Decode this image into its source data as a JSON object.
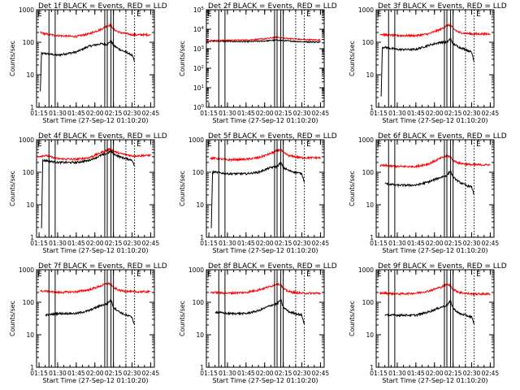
{
  "figure": {
    "xlabel": "Start Time (27-Sep-12 01:10:20)",
    "ylabel": "Counts/sec",
    "xticks": [
      "01:15",
      "01:30",
      "01:45",
      "02:00",
      "02:15",
      "02:30",
      "02:45"
    ],
    "legend_note": "BLACK = Events, RED = LLD",
    "marker_label": "E",
    "colors": {
      "events": "#000000",
      "lld": "#ff0000",
      "background": "#ffffff"
    }
  },
  "chart_data": [
    {
      "type": "line",
      "title": "Det 1f BLACK = Events, RED = LLD",
      "xlabel": "Start Time (27-Sep-12 01:10:20)",
      "ylabel": "Counts/sec",
      "yscale": "log",
      "ylim": [
        1,
        1000
      ],
      "yticks": [
        "1",
        "10",
        "100",
        "1000"
      ],
      "xlim": [
        "01:13",
        "02:48"
      ],
      "xticks": [
        "01:15",
        "01:30",
        "01:45",
        "02:00",
        "02:15",
        "02:30",
        "02:45"
      ],
      "series": [
        {
          "name": "Events",
          "color": "#000000",
          "x": [
            "01:16",
            "01:17",
            "01:20",
            "01:30",
            "01:45",
            "01:55",
            "02:05",
            "02:10",
            "02:13",
            "02:15",
            "02:20",
            "02:25",
            "02:30",
            "02:32"
          ],
          "y": [
            3,
            45,
            45,
            40,
            50,
            75,
            90,
            85,
            110,
            80,
            60,
            50,
            40,
            25
          ]
        },
        {
          "name": "LLD",
          "color": "#ff0000",
          "x": [
            "01:16",
            "01:20",
            "01:30",
            "01:45",
            "01:55",
            "02:05",
            "02:10",
            "02:13",
            "02:15",
            "02:20",
            "02:30",
            "02:45"
          ],
          "y": [
            200,
            180,
            160,
            150,
            180,
            250,
            320,
            340,
            250,
            200,
            170,
            170
          ]
        }
      ],
      "vlines_solid": [
        "01:23",
        "01:28",
        "02:08",
        "02:10",
        "02:13",
        "02:15"
      ],
      "vlines_dotted": [
        "02:25",
        "02:32"
      ],
      "markers": [
        "01:13",
        "02:33"
      ]
    },
    {
      "type": "line",
      "title": "Det 2f BLACK = Events, RED = LLD",
      "xlabel": "Start Time (27-Sep-12 01:10:20)",
      "ylabel": "Counts/sec",
      "yscale": "log",
      "ylim": [
        1,
        100000
      ],
      "yticks": [
        "10^0",
        "10^1",
        "10^2",
        "10^3",
        "10^4",
        "10^5"
      ],
      "xlim": [
        "01:13",
        "02:48"
      ],
      "xticks": [
        "01:15",
        "01:30",
        "01:45",
        "02:00",
        "02:15",
        "02:30",
        "02:45"
      ],
      "series": [
        {
          "name": "Events",
          "color": "#000000",
          "x": [
            "01:13",
            "01:30",
            "01:45",
            "02:00",
            "02:10",
            "02:15",
            "02:30",
            "02:45"
          ],
          "y": [
            2500,
            2400,
            2300,
            2500,
            2800,
            2600,
            2300,
            2200
          ]
        },
        {
          "name": "LLD",
          "color": "#ff0000",
          "x": [
            "01:13",
            "01:30",
            "01:45",
            "02:00",
            "02:10",
            "02:15",
            "02:30",
            "02:45"
          ],
          "y": [
            2600,
            2700,
            2800,
            3200,
            4000,
            3500,
            3000,
            2800
          ]
        }
      ],
      "vlines_solid": [
        "01:23",
        "01:28",
        "02:08",
        "02:10",
        "02:13",
        "02:15"
      ],
      "vlines_dotted": [
        "02:25",
        "02:32"
      ],
      "markers": [
        "01:13",
        "02:33"
      ]
    },
    {
      "type": "line",
      "title": "Det 3f BLACK = Events, RED = LLD",
      "xlabel": "Start Time (27-Sep-12 01:10:20)",
      "ylabel": "Counts/sec",
      "yscale": "log",
      "ylim": [
        1,
        1000
      ],
      "yticks": [
        "1",
        "10",
        "100",
        "1000"
      ],
      "xlim": [
        "01:13",
        "02:48"
      ],
      "xticks": [
        "01:15",
        "01:30",
        "01:45",
        "02:00",
        "02:15",
        "02:30",
        "02:45"
      ],
      "series": [
        {
          "name": "Events",
          "color": "#000000",
          "x": [
            "01:17",
            "01:18",
            "01:20",
            "01:30",
            "01:45",
            "01:55",
            "02:05",
            "02:10",
            "02:13",
            "02:15",
            "02:20",
            "02:25",
            "02:30",
            "02:32"
          ],
          "y": [
            2,
            70,
            70,
            60,
            60,
            80,
            100,
            100,
            130,
            90,
            70,
            60,
            50,
            25
          ]
        },
        {
          "name": "LLD",
          "color": "#ff0000",
          "x": [
            "01:16",
            "01:20",
            "01:30",
            "01:45",
            "01:55",
            "02:05",
            "02:10",
            "02:13",
            "02:15",
            "02:20",
            "02:30",
            "02:45"
          ],
          "y": [
            180,
            170,
            160,
            160,
            180,
            250,
            330,
            340,
            260,
            200,
            180,
            180
          ]
        }
      ],
      "vlines_solid": [
        "01:23",
        "01:28",
        "02:08",
        "02:10",
        "02:13",
        "02:15"
      ],
      "vlines_dotted": [
        "02:25",
        "02:32"
      ],
      "markers": [
        "01:13",
        "02:33"
      ]
    },
    {
      "type": "line",
      "title": "Det 4f BLACK = Events, RED = LLD",
      "xlabel": "Start Time (27-Sep-12 01:10:20)",
      "ylabel": "Counts/sec",
      "yscale": "log",
      "ylim": [
        1,
        1000
      ],
      "yticks": [
        "1",
        "10",
        "100",
        "1000"
      ],
      "xlim": [
        "01:13",
        "02:48"
      ],
      "xticks": [
        "01:15",
        "01:30",
        "01:45",
        "02:00",
        "02:15",
        "02:30",
        "02:45"
      ],
      "series": [
        {
          "name": "Events",
          "color": "#000000",
          "x": [
            "01:17",
            "01:18",
            "01:20",
            "01:30",
            "01:45",
            "01:55",
            "02:05",
            "02:10",
            "02:13",
            "02:15",
            "02:20",
            "02:25",
            "02:30",
            "02:32"
          ],
          "y": [
            2,
            230,
            230,
            200,
            200,
            230,
            330,
            380,
            450,
            370,
            300,
            260,
            240,
            150
          ]
        },
        {
          "name": "LLD",
          "color": "#ff0000",
          "x": [
            "01:13",
            "01:20",
            "01:30",
            "01:45",
            "01:55",
            "02:05",
            "02:10",
            "02:13",
            "02:15",
            "02:20",
            "02:30",
            "02:45"
          ],
          "y": [
            300,
            330,
            260,
            250,
            280,
            400,
            480,
            520,
            450,
            380,
            320,
            330
          ]
        }
      ],
      "vlines_solid": [
        "01:23",
        "01:28",
        "02:08",
        "02:10",
        "02:13",
        "02:15"
      ],
      "vlines_dotted": [
        "02:25",
        "02:32"
      ],
      "markers": [
        "01:13",
        "02:33"
      ]
    },
    {
      "type": "line",
      "title": "Det 5f BLACK = Events, RED = LLD",
      "xlabel": "Start Time (27-Sep-12 01:10:20)",
      "ylabel": "Counts/sec",
      "yscale": "log",
      "ylim": [
        1,
        1000
      ],
      "yticks": [
        "1",
        "10",
        "100",
        "1000"
      ],
      "xlim": [
        "01:13",
        "02:48"
      ],
      "xticks": [
        "01:15",
        "01:30",
        "01:45",
        "02:00",
        "02:15",
        "02:30",
        "02:45"
      ],
      "series": [
        {
          "name": "Events",
          "color": "#000000",
          "x": [
            "01:17",
            "01:18",
            "01:20",
            "01:30",
            "01:45",
            "01:55",
            "02:05",
            "02:10",
            "02:13",
            "02:15",
            "02:20",
            "02:25",
            "02:30",
            "02:32"
          ],
          "y": [
            2,
            100,
            100,
            90,
            90,
            100,
            140,
            150,
            200,
            140,
            110,
            100,
            90,
            50
          ]
        },
        {
          "name": "LLD",
          "color": "#ff0000",
          "x": [
            "01:16",
            "01:20",
            "01:30",
            "01:45",
            "01:55",
            "02:05",
            "02:10",
            "02:13",
            "02:15",
            "02:20",
            "02:30",
            "02:45"
          ],
          "y": [
            270,
            270,
            240,
            250,
            280,
            380,
            460,
            500,
            400,
            320,
            280,
            280
          ]
        }
      ],
      "vlines_solid": [
        "01:23",
        "01:28",
        "02:08",
        "02:10",
        "02:13",
        "02:15"
      ],
      "vlines_dotted": [
        "02:25",
        "02:32"
      ],
      "markers": [
        "01:13",
        "02:33"
      ]
    },
    {
      "type": "line",
      "title": "Det 6f BLACK = Events, RED = LLD",
      "xlabel": "Start Time (27-Sep-12 01:10:20)",
      "ylabel": "Counts/sec",
      "yscale": "log",
      "ylim": [
        1,
        1000
      ],
      "yticks": [
        "1",
        "10",
        "100",
        "1000"
      ],
      "xlim": [
        "01:13",
        "02:48"
      ],
      "xticks": [
        "01:15",
        "01:30",
        "01:45",
        "02:00",
        "02:15",
        "02:30",
        "02:45"
      ],
      "series": [
        {
          "name": "Events",
          "color": "#000000",
          "x": [
            "01:20",
            "01:30",
            "01:45",
            "01:55",
            "02:05",
            "02:10",
            "02:13",
            "02:15",
            "02:20",
            "02:25",
            "02:30",
            "02:32"
          ],
          "y": [
            45,
            40,
            40,
            50,
            70,
            80,
            110,
            70,
            50,
            40,
            35,
            20
          ]
        },
        {
          "name": "LLD",
          "color": "#ff0000",
          "x": [
            "01:16",
            "01:20",
            "01:30",
            "01:45",
            "01:55",
            "02:05",
            "02:10",
            "02:13",
            "02:15",
            "02:20",
            "02:30",
            "02:45"
          ],
          "y": [
            160,
            160,
            150,
            150,
            180,
            270,
            320,
            300,
            230,
            190,
            170,
            170
          ]
        }
      ],
      "vlines_solid": [
        "01:23",
        "01:28",
        "02:08",
        "02:10",
        "02:13",
        "02:15"
      ],
      "vlines_dotted": [
        "02:25",
        "02:32"
      ],
      "markers": [
        "01:13",
        "02:33"
      ]
    },
    {
      "type": "line",
      "title": "Det 7f BLACK = Events, RED = LLD",
      "xlabel": "Start Time (27-Sep-12 01:10:20)",
      "ylabel": "Counts/sec",
      "yscale": "log",
      "ylim": [
        1,
        1000
      ],
      "yticks": [
        "1",
        "10",
        "100",
        "1000"
      ],
      "xlim": [
        "01:13",
        "02:48"
      ],
      "xticks": [
        "01:15",
        "01:30",
        "01:45",
        "02:00",
        "02:15",
        "02:30",
        "02:45"
      ],
      "series": [
        {
          "name": "Events",
          "color": "#000000",
          "x": [
            "01:20",
            "01:30",
            "01:45",
            "01:55",
            "02:05",
            "02:10",
            "02:13",
            "02:15",
            "02:20",
            "02:25",
            "02:30",
            "02:32"
          ],
          "y": [
            40,
            45,
            45,
            55,
            80,
            90,
            120,
            70,
            50,
            40,
            35,
            20
          ]
        },
        {
          "name": "LLD",
          "color": "#ff0000",
          "x": [
            "01:16",
            "01:20",
            "01:30",
            "01:45",
            "01:55",
            "02:05",
            "02:10",
            "02:13",
            "02:15",
            "02:20",
            "02:30",
            "02:45"
          ],
          "y": [
            220,
            220,
            200,
            210,
            240,
            320,
            380,
            360,
            280,
            230,
            210,
            210
          ]
        }
      ],
      "vlines_solid": [
        "01:23",
        "01:28",
        "02:08",
        "02:10",
        "02:13",
        "02:15"
      ],
      "vlines_dotted": [
        "02:25",
        "02:32"
      ],
      "markers": [
        "01:13",
        "02:33"
      ]
    },
    {
      "type": "line",
      "title": "Det 8f BLACK = Events, RED = LLD",
      "xlabel": "Start Time (27-Sep-12 01:10:20)",
      "ylabel": "Counts/sec",
      "yscale": "log",
      "ylim": [
        1,
        1000
      ],
      "yticks": [
        "1",
        "10",
        "100",
        "1000"
      ],
      "xlim": [
        "01:13",
        "02:48"
      ],
      "xticks": [
        "01:15",
        "01:30",
        "01:45",
        "02:00",
        "02:15",
        "02:30",
        "02:45"
      ],
      "series": [
        {
          "name": "Events",
          "color": "#000000",
          "x": [
            "01:20",
            "01:30",
            "01:45",
            "01:55",
            "02:05",
            "02:10",
            "02:13",
            "02:15",
            "02:20",
            "02:25",
            "02:30",
            "02:32"
          ],
          "y": [
            50,
            45,
            45,
            55,
            80,
            90,
            120,
            70,
            50,
            45,
            40,
            20
          ]
        },
        {
          "name": "LLD",
          "color": "#ff0000",
          "x": [
            "01:16",
            "01:20",
            "01:30",
            "01:45",
            "01:55",
            "02:05",
            "02:10",
            "02:13",
            "02:15",
            "02:20",
            "02:30",
            "02:45"
          ],
          "y": [
            200,
            200,
            190,
            200,
            240,
            310,
            370,
            350,
            260,
            210,
            190,
            190
          ]
        }
      ],
      "vlines_solid": [
        "01:23",
        "01:28",
        "02:08",
        "02:10",
        "02:13",
        "02:15"
      ],
      "vlines_dotted": [
        "02:25",
        "02:32"
      ],
      "markers": [
        "01:13",
        "02:33"
      ]
    },
    {
      "type": "line",
      "title": "Det 9f BLACK = Events, RED = LLD",
      "xlabel": "Start Time (27-Sep-12 01:10:20)",
      "ylabel": "Counts/sec",
      "yscale": "log",
      "ylim": [
        1,
        1000
      ],
      "yticks": [
        "1",
        "10",
        "100",
        "1000"
      ],
      "xlim": [
        "01:13",
        "02:48"
      ],
      "xticks": [
        "01:15",
        "01:30",
        "01:45",
        "02:00",
        "02:15",
        "02:30",
        "02:45"
      ],
      "series": [
        {
          "name": "Events",
          "color": "#000000",
          "x": [
            "01:20",
            "01:30",
            "01:45",
            "01:55",
            "02:05",
            "02:10",
            "02:13",
            "02:15",
            "02:20",
            "02:25",
            "02:30",
            "02:32"
          ],
          "y": [
            40,
            40,
            40,
            50,
            70,
            80,
            110,
            65,
            45,
            40,
            35,
            20
          ]
        },
        {
          "name": "LLD",
          "color": "#ff0000",
          "x": [
            "01:16",
            "01:20",
            "01:30",
            "01:45",
            "01:55",
            "02:05",
            "02:10",
            "02:13",
            "02:15",
            "02:20",
            "02:30",
            "02:45"
          ],
          "y": [
            190,
            190,
            180,
            190,
            220,
            290,
            350,
            330,
            250,
            200,
            180,
            180
          ]
        }
      ],
      "vlines_solid": [
        "01:23",
        "01:28",
        "02:08",
        "02:10",
        "02:13",
        "02:15"
      ],
      "vlines_dotted": [
        "02:25",
        "02:32"
      ],
      "markers": [
        "01:13",
        "02:33"
      ]
    }
  ]
}
